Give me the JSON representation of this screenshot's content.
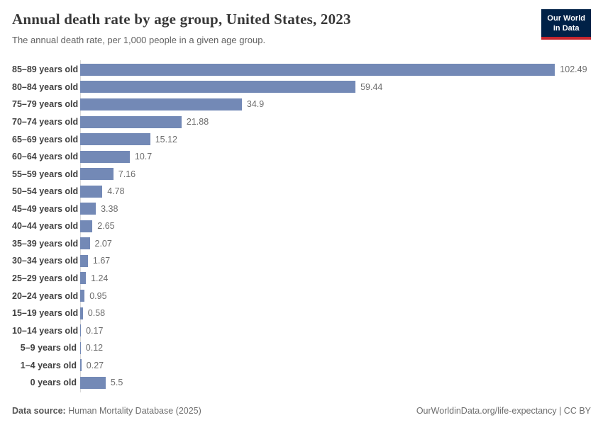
{
  "header": {
    "title": "Annual death rate by age group, United States, 2023",
    "subtitle": "The annual death rate, per 1,000 people in a given age group.",
    "logo": {
      "line1": "Our World",
      "line2": "in Data"
    }
  },
  "chart_data": {
    "type": "bar",
    "orientation": "horizontal",
    "title": "Annual death rate by age group, United States, 2023",
    "subtitle": "The annual death rate, per 1,000 people in a given age group.",
    "xlabel": "",
    "ylabel": "",
    "unit": "deaths per 1,000 people",
    "xlim": [
      0,
      110
    ],
    "grid": false,
    "legend": "none",
    "bar_color": "#7389b6",
    "axis_color": "#d9d9d9",
    "categories": [
      "85–89 years old",
      "80–84 years old",
      "75–79 years old",
      "70–74 years old",
      "65–69 years old",
      "60–64 years old",
      "55–59 years old",
      "50–54 years old",
      "45–49 years old",
      "40–44 years old",
      "35–39 years old",
      "30–34 years old",
      "25–29 years old",
      "20–24 years old",
      "15–19 years old",
      "10–14 years old",
      "5–9 years old",
      "1–4 years old",
      "0 years old"
    ],
    "values": [
      102.49,
      59.44,
      34.9,
      21.88,
      15.12,
      10.7,
      7.16,
      4.78,
      3.38,
      2.65,
      2.07,
      1.67,
      1.24,
      0.95,
      0.58,
      0.17,
      0.12,
      0.27,
      5.5
    ],
    "value_labels": [
      "102.49",
      "59.44",
      "34.9",
      "21.88",
      "15.12",
      "10.7",
      "7.16",
      "4.78",
      "3.38",
      "2.65",
      "2.07",
      "1.67",
      "1.24",
      "0.95",
      "0.58",
      "0.17",
      "0.12",
      "0.27",
      "5.5"
    ]
  },
  "footer": {
    "source_label": "Data source:",
    "source_text": " Human Mortality Database (2025)",
    "link_text": "OurWorldinData.org/life-expectancy | CC BY"
  },
  "colors": {
    "bar": "#7389b6",
    "logo_background": "#002147",
    "logo_accent": "#c5262e",
    "title_text": "#383838",
    "subtitle_text": "#616161"
  }
}
